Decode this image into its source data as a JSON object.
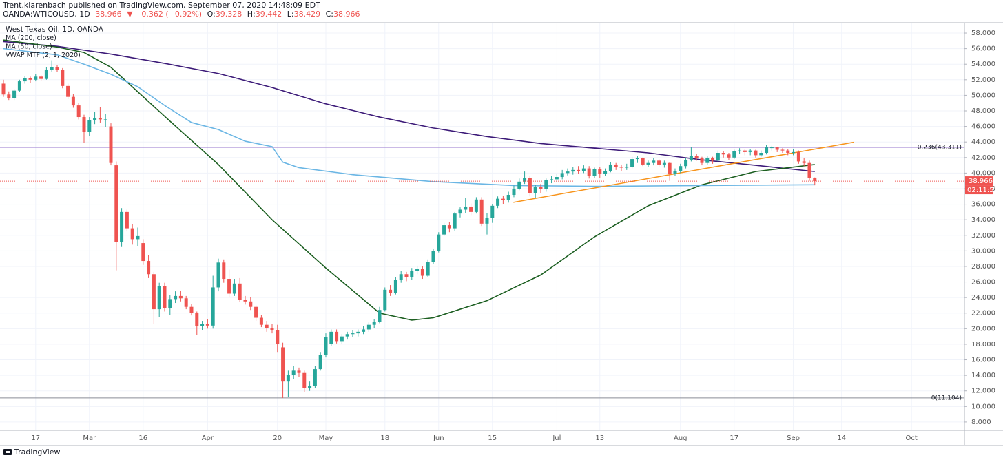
{
  "header": {
    "published": "Trent.klarenbach published on TradingView.com, September 07, 2020 14:48:09 EDT",
    "symbol": "OANDA:WTICOUSD, 1D",
    "last": "38.966",
    "change": "▼ −0.362 (−0.92%)",
    "ohlc": [
      {
        "label": "O:",
        "value": "39.328"
      },
      {
        "label": "H:",
        "value": "39.442"
      },
      {
        "label": "L:",
        "value": "38.429"
      },
      {
        "label": "C:",
        "value": "38.966"
      }
    ]
  },
  "footer": {
    "brand": "TradingView"
  },
  "chart_data": {
    "type": "candlestick",
    "legend": [
      "West Texas Oil, 1D, OANDA",
      "MA (200, close)",
      "MA (50, close)",
      "VWAP MTF (2, 1, 2020)"
    ],
    "up_color": "#26a69a",
    "down_color": "#ef5350",
    "xlim": [
      -0.64,
      178.85
    ],
    "ylim": [
      6.93,
      59.33
    ],
    "xticks": [
      {
        "value": 6,
        "label": "17"
      },
      {
        "value": 16,
        "label": "Mar"
      },
      {
        "value": 26,
        "label": "16"
      },
      {
        "value": 38,
        "label": "Apr"
      },
      {
        "value": 51,
        "label": "20"
      },
      {
        "value": 60,
        "label": "May"
      },
      {
        "value": 71,
        "label": "18"
      },
      {
        "value": 81,
        "label": "Jun"
      },
      {
        "value": 91,
        "label": "15"
      },
      {
        "value": 103,
        "label": "Jul"
      },
      {
        "value": 111,
        "label": "13"
      },
      {
        "value": 126,
        "label": "Aug"
      },
      {
        "value": 136,
        "label": "17"
      },
      {
        "value": 147,
        "label": "Sep"
      },
      {
        "value": 156,
        "label": "14"
      },
      {
        "value": 169,
        "label": "Oct"
      }
    ],
    "yticks": [
      {
        "value": 8,
        "label": "8.000"
      },
      {
        "value": 10,
        "label": "10.000"
      },
      {
        "value": 12,
        "label": "12.000"
      },
      {
        "value": 14,
        "label": "14.000"
      },
      {
        "value": 16,
        "label": "16.000"
      },
      {
        "value": 18,
        "label": "18.000"
      },
      {
        "value": 20,
        "label": "20.000"
      },
      {
        "value": 22,
        "label": "22.000"
      },
      {
        "value": 24,
        "label": "24.000"
      },
      {
        "value": 26,
        "label": "26.000"
      },
      {
        "value": 28,
        "label": "28.000"
      },
      {
        "value": 30,
        "label": "30.000"
      },
      {
        "value": 32,
        "label": "32.000"
      },
      {
        "value": 34,
        "label": "34.000"
      },
      {
        "value": 36,
        "label": "36.000"
      },
      {
        "value": 38,
        "label": "38.000"
      },
      {
        "value": 40,
        "label": "40.000"
      },
      {
        "value": 42,
        "label": "42.000"
      },
      {
        "value": 44,
        "label": "44.000"
      },
      {
        "value": 46,
        "label": "46.000"
      },
      {
        "value": 48,
        "label": "48.000"
      },
      {
        "value": 50,
        "label": "50.000"
      },
      {
        "value": 52,
        "label": "52.000"
      },
      {
        "value": 54,
        "label": "54.000"
      },
      {
        "value": 56,
        "label": "56.000"
      },
      {
        "value": 58,
        "label": "58.000"
      }
    ],
    "ohlc": [
      [
        51.5,
        52.0,
        49.8,
        50.1
      ],
      [
        50.1,
        50.5,
        49.4,
        49.6
      ],
      [
        49.6,
        50.8,
        49.4,
        50.6
      ],
      [
        50.6,
        52.0,
        50.4,
        51.8
      ],
      [
        51.8,
        52.5,
        51.5,
        52.2
      ],
      [
        52.2,
        52.4,
        51.6,
        52.0
      ],
      [
        52.0,
        52.7,
        51.8,
        52.4
      ],
      [
        52.4,
        52.6,
        51.8,
        52.1
      ],
      [
        52.1,
        53.6,
        52.0,
        53.3
      ],
      [
        53.3,
        54.5,
        53.0,
        53.6
      ],
      [
        53.6,
        53.9,
        53.0,
        53.3
      ],
      [
        53.3,
        53.5,
        50.9,
        51.2
      ],
      [
        51.2,
        51.5,
        49.5,
        49.8
      ],
      [
        49.8,
        50.2,
        48.4,
        48.7
      ],
      [
        48.7,
        49.0,
        46.9,
        47.2
      ],
      [
        47.2,
        47.5,
        43.9,
        45.3
      ],
      [
        45.3,
        47.2,
        44.8,
        46.8
      ],
      [
        46.8,
        47.9,
        46.3,
        47.1
      ],
      [
        47.1,
        48.5,
        46.5,
        46.9
      ],
      [
        46.9,
        47.6,
        45.9,
        46.9
      ],
      [
        46.0,
        46.4,
        41.0,
        41.3
      ],
      [
        41.0,
        41.5,
        27.5,
        31.1
      ],
      [
        31.1,
        35.5,
        30.5,
        35.0
      ],
      [
        35.0,
        35.3,
        32.5,
        32.9
      ],
      [
        32.9,
        33.4,
        30.8,
        31.5
      ],
      [
        31.5,
        33.0,
        30.6,
        31.9
      ],
      [
        31.0,
        31.5,
        28.2,
        28.7
      ],
      [
        28.7,
        29.5,
        26.5,
        27.0
      ],
      [
        27.0,
        27.3,
        20.6,
        22.5
      ],
      [
        22.5,
        25.9,
        21.5,
        25.5
      ],
      [
        25.5,
        25.9,
        22.2,
        22.6
      ],
      [
        22.6,
        24.3,
        21.8,
        23.8
      ],
      [
        23.8,
        24.8,
        23.3,
        24.2
      ],
      [
        24.2,
        24.9,
        23.5,
        23.9
      ],
      [
        23.9,
        24.2,
        22.5,
        22.8
      ],
      [
        22.8,
        23.2,
        21.7,
        22.0
      ],
      [
        22.0,
        22.2,
        19.2,
        20.3
      ],
      [
        20.3,
        21.0,
        19.8,
        20.6
      ],
      [
        20.6,
        21.2,
        20.0,
        20.4
      ],
      [
        20.4,
        26.8,
        20.0,
        25.3
      ],
      [
        25.3,
        29.0,
        24.8,
        28.5
      ],
      [
        28.5,
        28.9,
        25.9,
        26.4
      ],
      [
        26.4,
        27.6,
        24.0,
        24.5
      ],
      [
        24.5,
        26.4,
        24.2,
        25.8
      ],
      [
        25.8,
        26.5,
        23.4,
        23.7
      ],
      [
        23.7,
        24.2,
        23.1,
        23.5
      ],
      [
        23.5,
        24.1,
        22.4,
        22.8
      ],
      [
        22.8,
        23.0,
        21.0,
        21.4
      ],
      [
        21.4,
        21.8,
        20.2,
        20.5
      ],
      [
        20.5,
        21.0,
        19.6,
        20.1
      ],
      [
        20.1,
        20.6,
        19.4,
        19.8
      ],
      [
        19.8,
        20.5,
        17.0,
        18.0
      ],
      [
        17.6,
        18.2,
        11.1,
        13.2
      ],
      [
        13.2,
        14.6,
        11.2,
        14.1
      ],
      [
        14.1,
        15.2,
        13.5,
        14.6
      ],
      [
        14.6,
        15.0,
        13.8,
        14.3
      ],
      [
        14.3,
        14.6,
        11.8,
        12.4
      ],
      [
        12.4,
        13.2,
        12.0,
        12.6
      ],
      [
        12.6,
        15.2,
        12.4,
        14.8
      ],
      [
        14.8,
        17.0,
        14.6,
        16.6
      ],
      [
        16.6,
        19.4,
        16.3,
        18.9
      ],
      [
        18.0,
        19.9,
        17.8,
        19.6
      ],
      [
        19.6,
        19.9,
        18.1,
        18.4
      ],
      [
        18.4,
        19.3,
        18.0,
        19.0
      ],
      [
        19.0,
        19.6,
        18.6,
        19.3
      ],
      [
        19.3,
        19.8,
        18.9,
        19.4
      ],
      [
        19.4,
        19.9,
        19.0,
        19.6
      ],
      [
        19.6,
        20.3,
        19.3,
        19.9
      ],
      [
        19.9,
        20.8,
        19.6,
        20.5
      ],
      [
        20.5,
        21.2,
        20.1,
        20.9
      ],
      [
        20.9,
        22.8,
        20.7,
        22.4
      ],
      [
        22.4,
        25.3,
        22.2,
        25.0
      ],
      [
        25.0,
        25.6,
        24.2,
        24.6
      ],
      [
        24.6,
        26.6,
        24.4,
        26.3
      ],
      [
        26.3,
        27.4,
        25.9,
        27.0
      ],
      [
        27.0,
        27.3,
        26.1,
        26.6
      ],
      [
        26.6,
        27.8,
        26.3,
        27.4
      ],
      [
        27.4,
        28.1,
        27.0,
        27.7
      ],
      [
        27.7,
        28.0,
        26.4,
        26.8
      ],
      [
        26.8,
        28.9,
        26.6,
        28.6
      ],
      [
        28.6,
        30.3,
        28.3,
        30.0
      ],
      [
        30.0,
        32.4,
        29.8,
        32.1
      ],
      [
        32.1,
        33.6,
        31.9,
        33.3
      ],
      [
        33.3,
        33.7,
        32.4,
        32.9
      ],
      [
        32.9,
        35.0,
        32.6,
        34.8
      ],
      [
        34.8,
        35.6,
        34.3,
        35.3
      ],
      [
        35.3,
        36.8,
        34.9,
        35.7
      ],
      [
        35.7,
        36.1,
        34.6,
        35.0
      ],
      [
        35.0,
        36.9,
        34.8,
        36.6
      ],
      [
        36.6,
        36.9,
        33.2,
        33.5
      ],
      [
        33.5,
        34.9,
        32.1,
        34.2
      ],
      [
        34.2,
        36.0,
        33.6,
        35.8
      ],
      [
        35.8,
        37.0,
        35.5,
        36.7
      ],
      [
        36.7,
        37.1,
        36.0,
        36.5
      ],
      [
        36.5,
        37.6,
        36.2,
        37.2
      ],
      [
        37.2,
        38.4,
        36.9,
        38.0
      ],
      [
        38.0,
        39.3,
        37.8,
        38.9
      ],
      [
        38.9,
        40.2,
        38.6,
        39.4
      ],
      [
        39.4,
        39.6,
        37.0,
        37.4
      ],
      [
        37.4,
        38.5,
        36.8,
        38.2
      ],
      [
        38.2,
        38.6,
        37.4,
        38.0
      ],
      [
        38.0,
        39.3,
        37.6,
        39.1
      ],
      [
        39.1,
        39.6,
        38.7,
        39.2
      ],
      [
        39.2,
        39.9,
        38.8,
        39.5
      ],
      [
        39.5,
        40.4,
        39.2,
        40.0
      ],
      [
        40.0,
        40.6,
        39.7,
        40.2
      ],
      [
        40.2,
        40.8,
        39.8,
        40.4
      ],
      [
        40.4,
        40.9,
        39.9,
        40.3
      ],
      [
        40.3,
        41.0,
        40.0,
        40.6
      ],
      [
        40.6,
        40.9,
        39.3,
        39.6
      ],
      [
        39.6,
        40.7,
        39.4,
        40.5
      ],
      [
        40.5,
        40.8,
        39.4,
        39.9
      ],
      [
        39.9,
        40.6,
        39.6,
        40.3
      ],
      [
        40.3,
        41.4,
        40.1,
        41.1
      ],
      [
        41.1,
        41.3,
        40.4,
        40.8
      ],
      [
        40.8,
        41.1,
        40.3,
        40.7
      ],
      [
        40.7,
        41.2,
        40.4,
        40.8
      ],
      [
        40.8,
        42.1,
        40.6,
        41.8
      ],
      [
        41.8,
        42.2,
        41.3,
        41.9
      ],
      [
        41.9,
        42.0,
        40.9,
        41.1
      ],
      [
        41.1,
        41.6,
        40.8,
        41.3
      ],
      [
        41.3,
        41.9,
        41.0,
        41.6
      ],
      [
        41.6,
        41.8,
        40.8,
        41.1
      ],
      [
        41.1,
        41.6,
        40.7,
        41.3
      ],
      [
        41.3,
        41.4,
        39.0,
        39.9
      ],
      [
        39.9,
        40.6,
        39.6,
        40.3
      ],
      [
        40.3,
        41.2,
        40.0,
        40.9
      ],
      [
        40.9,
        41.9,
        40.6,
        41.7
      ],
      [
        41.7,
        43.3,
        41.5,
        42.2
      ],
      [
        42.2,
        42.5,
        41.6,
        41.9
      ],
      [
        41.9,
        42.1,
        41.0,
        41.3
      ],
      [
        41.3,
        42.2,
        41.1,
        41.9
      ],
      [
        41.9,
        42.1,
        41.2,
        41.6
      ],
      [
        41.6,
        42.9,
        41.4,
        42.6
      ],
      [
        42.6,
        42.8,
        42.0,
        42.4
      ],
      [
        42.4,
        42.6,
        41.7,
        42.0
      ],
      [
        42.0,
        43.0,
        41.8,
        42.8
      ],
      [
        42.8,
        43.2,
        42.5,
        42.9
      ],
      [
        42.9,
        43.1,
        42.3,
        42.7
      ],
      [
        42.7,
        43.1,
        42.3,
        42.9
      ],
      [
        42.9,
        43.0,
        42.0,
        42.3
      ],
      [
        42.3,
        42.9,
        42.1,
        42.6
      ],
      [
        42.6,
        43.6,
        42.4,
        43.3
      ],
      [
        43.3,
        43.5,
        42.9,
        43.3
      ],
      [
        43.3,
        43.4,
        42.7,
        43.0
      ],
      [
        43.0,
        43.2,
        42.6,
        42.9
      ],
      [
        42.9,
        43.1,
        42.3,
        42.6
      ],
      [
        42.6,
        43.1,
        42.3,
        42.7
      ],
      [
        42.7,
        42.9,
        41.2,
        41.5
      ],
      [
        41.5,
        41.9,
        40.9,
        41.3
      ],
      [
        41.3,
        41.6,
        39.0,
        39.4
      ],
      [
        39.328,
        39.442,
        38.429,
        38.966
      ]
    ],
    "series": [
      {
        "name": "MA (200, close)",
        "color": "#3c1a78",
        "x": [
          0,
          10,
          20,
          30,
          40,
          50,
          60,
          70,
          80,
          90,
          100,
          110,
          120,
          130,
          140,
          151
        ],
        "values": [
          56.9,
          56.3,
          55.3,
          54.1,
          52.8,
          51.0,
          48.9,
          47.2,
          45.8,
          44.7,
          43.8,
          43.2,
          42.6,
          41.7,
          41.0,
          40.2
        ]
      },
      {
        "name": "MA (50, close)",
        "color": "#1b5e20",
        "x": [
          0,
          10,
          15,
          20,
          30,
          40,
          50,
          60,
          70,
          76,
          80,
          90,
          100,
          110,
          120,
          130,
          140,
          151
        ],
        "values": [
          57.1,
          56.2,
          55.5,
          53.6,
          47.3,
          41.1,
          34.0,
          27.8,
          22.0,
          21.1,
          21.4,
          23.6,
          26.9,
          31.8,
          35.8,
          38.5,
          40.2,
          41.1
        ]
      },
      {
        "name": "VWAP MTF (2, 1, 2020)",
        "color": "#6bb6e4",
        "x": [
          0,
          10,
          15,
          20,
          25,
          30,
          35,
          40,
          45,
          50,
          52,
          55,
          65,
          80,
          95,
          110,
          151
        ],
        "values": [
          56.0,
          55.2,
          54.0,
          52.7,
          51.1,
          48.7,
          46.5,
          45.6,
          44.1,
          43.4,
          41.4,
          40.7,
          39.8,
          38.9,
          38.4,
          38.3,
          38.5
        ]
      }
    ],
    "trendlines": [
      {
        "color": "#f7931a",
        "x": [
          94.9,
          158.3
        ],
        "values": [
          36.24,
          43.97
        ]
      }
    ],
    "levels": [
      {
        "value": 43.311,
        "label": "0.236(43.311)",
        "color": "#9575cd"
      },
      {
        "value": 11.104,
        "label": "0(11.104)",
        "color": "#8a8d96"
      }
    ],
    "last_price": {
      "value": 38.966,
      "label": "38.966",
      "countdown": "02:11:53"
    }
  }
}
